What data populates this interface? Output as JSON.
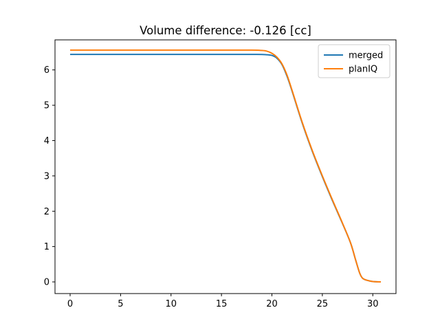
{
  "chart_data": {
    "type": "line",
    "title": "Volume difference: -0.126 [cc]",
    "xlabel": "",
    "ylabel": "",
    "xlim": [
      -1.5,
      32.3
    ],
    "ylim": [
      -0.33,
      6.85
    ],
    "xticks": [
      0,
      5,
      10,
      15,
      20,
      25,
      30
    ],
    "yticks": [
      0,
      1,
      2,
      3,
      4,
      5,
      6
    ],
    "grid": false,
    "legend_position": "top-right",
    "series": [
      {
        "name": "merged",
        "color": "#1f77b4",
        "x": [
          0,
          5,
          10,
          15,
          18.5,
          19.5,
          20.0,
          20.5,
          21.0,
          21.5,
          22.0,
          23.0,
          24.0,
          25.0,
          26.0,
          27.0,
          27.8,
          28.3,
          28.7,
          29.0,
          29.5,
          30.0,
          30.8
        ],
        "y": [
          6.44,
          6.44,
          6.44,
          6.44,
          6.44,
          6.43,
          6.41,
          6.33,
          6.15,
          5.82,
          5.4,
          4.5,
          3.7,
          2.98,
          2.3,
          1.65,
          1.1,
          0.62,
          0.25,
          0.1,
          0.04,
          0.01,
          0.0
        ]
      },
      {
        "name": "planIQ",
        "color": "#ff7f0e",
        "x": [
          0,
          5,
          10,
          15,
          18.0,
          19.0,
          19.5,
          20.0,
          20.5,
          21.0,
          21.5,
          22.0,
          23.0,
          24.0,
          25.0,
          26.0,
          27.0,
          27.8,
          28.3,
          28.7,
          29.0,
          29.5,
          30.0,
          30.8
        ],
        "y": [
          6.56,
          6.56,
          6.56,
          6.56,
          6.56,
          6.55,
          6.53,
          6.47,
          6.36,
          6.17,
          5.85,
          5.42,
          4.52,
          3.72,
          3.0,
          2.32,
          1.66,
          1.1,
          0.62,
          0.25,
          0.1,
          0.04,
          0.01,
          0.0
        ]
      }
    ]
  }
}
